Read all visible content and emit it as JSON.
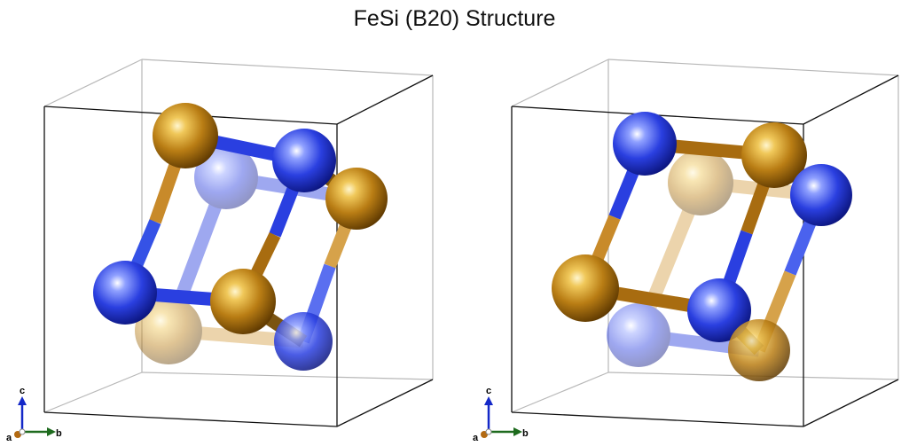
{
  "title": "FeSi (B20) Structure",
  "colors": {
    "fe": "#b5780f",
    "si": "#2a3fe0",
    "cell_edge": "#111111",
    "axis_a": "#b36a12",
    "axis_b": "#1e6b1e",
    "axis_c": "#1428c8"
  },
  "panels": [
    {
      "axes": {
        "a": "a",
        "b": "b",
        "c": "c"
      }
    },
    {
      "axes": {
        "a": "a",
        "b": "b",
        "c": "c"
      }
    }
  ]
}
